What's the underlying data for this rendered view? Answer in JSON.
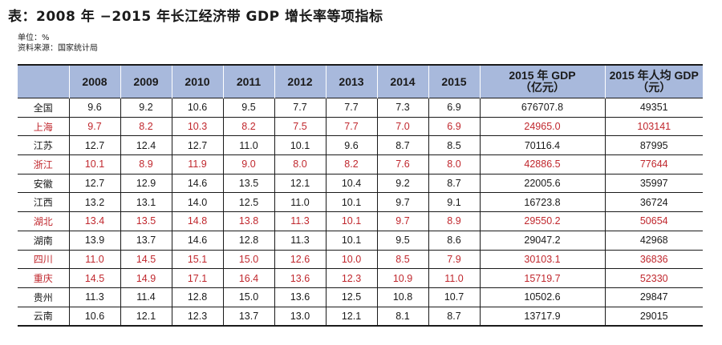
{
  "title": "表：2008 年 −2015 年长江经济带 GDP 增长率等项指标",
  "unit": "单位：%",
  "source": "资料来源：国家统计局",
  "table": {
    "header": {
      "corner": "",
      "years": [
        "2008",
        "2009",
        "2010",
        "2011",
        "2012",
        "2013",
        "2014",
        "2015"
      ],
      "gdp_line1": "2015 年 GDP",
      "gdp_line2": "（亿元）",
      "pc_line1": "2015 年人均 GDP",
      "pc_line2": "（元）"
    },
    "highlight_color": "#c0272d",
    "rows": [
      {
        "name": "全国",
        "highlight": false,
        "rates": [
          "9.6",
          "9.2",
          "10.6",
          "9.5",
          "7.7",
          "7.7",
          "7.3",
          "6.9"
        ],
        "gdp": "676707.8",
        "per_capita": "49351"
      },
      {
        "name": "上海",
        "highlight": true,
        "rates": [
          "9.7",
          "8.2",
          "10.3",
          "8.2",
          "7.5",
          "7.7",
          "7.0",
          "6.9"
        ],
        "gdp": "24965.0",
        "per_capita": "103141"
      },
      {
        "name": "江苏",
        "highlight": false,
        "rates": [
          "12.7",
          "12.4",
          "12.7",
          "11.0",
          "10.1",
          "9.6",
          "8.7",
          "8.5"
        ],
        "gdp": "70116.4",
        "per_capita": "87995"
      },
      {
        "name": "浙江",
        "highlight": true,
        "rates": [
          "10.1",
          "8.9",
          "11.9",
          "9.0",
          "8.0",
          "8.2",
          "7.6",
          "8.0"
        ],
        "gdp": "42886.5",
        "per_capita": "77644"
      },
      {
        "name": "安徽",
        "highlight": false,
        "rates": [
          "12.7",
          "12.9",
          "14.6",
          "13.5",
          "12.1",
          "10.4",
          "9.2",
          "8.7"
        ],
        "gdp": "22005.6",
        "per_capita": "35997"
      },
      {
        "name": "江西",
        "highlight": false,
        "rates": [
          "13.2",
          "13.1",
          "14.0",
          "12.5",
          "11.0",
          "10.1",
          "9.7",
          "9.1"
        ],
        "gdp": "16723.8",
        "per_capita": "36724"
      },
      {
        "name": "湖北",
        "highlight": true,
        "rates": [
          "13.4",
          "13.5",
          "14.8",
          "13.8",
          "11.3",
          "10.1",
          "9.7",
          "8.9"
        ],
        "gdp": "29550.2",
        "per_capita": "50654"
      },
      {
        "name": "湖南",
        "highlight": false,
        "rates": [
          "13.9",
          "13.7",
          "14.6",
          "12.8",
          "11.3",
          "10.1",
          "9.5",
          "8.6"
        ],
        "gdp": "29047.2",
        "per_capita": "42968"
      },
      {
        "name": "四川",
        "highlight": true,
        "rates": [
          "11.0",
          "14.5",
          "15.1",
          "15.0",
          "12.6",
          "10.0",
          "8.5",
          "7.9"
        ],
        "gdp": "30103.1",
        "per_capita": "36836"
      },
      {
        "name": "重庆",
        "highlight": true,
        "rates": [
          "14.5",
          "14.9",
          "17.1",
          "16.4",
          "13.6",
          "12.3",
          "10.9",
          "11.0"
        ],
        "gdp": "15719.7",
        "per_capita": "52330"
      },
      {
        "name": "贵州",
        "highlight": false,
        "rates": [
          "11.3",
          "11.4",
          "12.8",
          "15.0",
          "13.6",
          "12.5",
          "10.8",
          "10.7"
        ],
        "gdp": "10502.6",
        "per_capita": "29847"
      },
      {
        "name": "云南",
        "highlight": false,
        "rates": [
          "10.6",
          "12.1",
          "12.3",
          "13.7",
          "13.0",
          "12.1",
          "8.1",
          "8.7"
        ],
        "gdp": "13717.9",
        "per_capita": "29015"
      }
    ]
  }
}
